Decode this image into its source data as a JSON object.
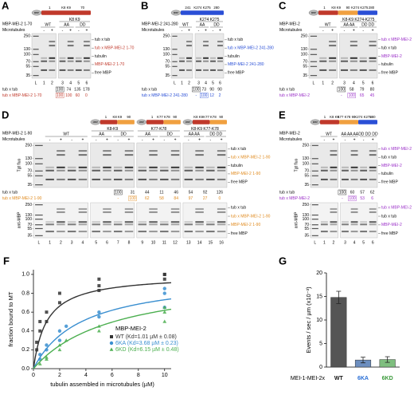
{
  "mbp_tag": "MBP",
  "panels": [
    {
      "letter": "A",
      "construct": "MBP-MEI-2 1-70",
      "microtubules_label": "Microtubules",
      "diagrams": [
        {
          "labels": [
            "1",
            "K8 K9",
            "70"
          ],
          "segments": [
            "#c0392b"
          ]
        }
      ],
      "gels": [
        {
          "groups": [
            "WT"
          ],
          "lanes": [
            "L",
            "1",
            "2"
          ],
          "signs": [
            "-",
            "+"
          ]
        },
        {
          "header": "K8 K9",
          "groups": [
            "AA",
            "DD"
          ],
          "lanes": [
            "3",
            "4",
            "5",
            "6"
          ],
          "signs": [
            "-",
            "+",
            "-",
            "+"
          ]
        }
      ],
      "mw_top": [
        250,
        130,
        100,
        70,
        55,
        35
      ],
      "right_top": [
        {
          "text": "tub x tub",
          "color": "#111"
        },
        {
          "text": "tub x MBP-MEI-2 1-70",
          "color": "#c0392b"
        },
        {
          "text": "tubulin",
          "color": "#111"
        },
        {
          "text": "MBP-MEI-2 1-70",
          "color": "#c0392b"
        },
        {
          "text": "free MBP",
          "color": "#111"
        }
      ],
      "quant": [
        {
          "label": "tub x tub",
          "color": "#111",
          "values": [
            100,
            74,
            135,
            178
          ],
          "boxed": 0
        },
        {
          "label": "tub x MBP-MEI-2 1-70",
          "color": "#c0392b",
          "values": [
            100,
            100,
            60,
            0
          ],
          "boxed": 0
        }
      ]
    },
    {
      "letter": "B",
      "construct": "MBP-MEI-2 241-280",
      "microtubules_label": "Microtubules",
      "diagrams": [
        {
          "labels": [
            "241",
            "K274 K275",
            "280"
          ],
          "segments": [
            "#2a4fd6"
          ]
        }
      ],
      "gels": [
        {
          "groups": [
            "WT"
          ],
          "lanes": [
            "L",
            "1",
            "2"
          ],
          "signs": [
            "-",
            "+"
          ]
        },
        {
          "header": "K274 K275",
          "groups": [
            "AA",
            "DD"
          ],
          "lanes": [
            "3",
            "4",
            "5",
            "6"
          ],
          "signs": [
            "-",
            "+",
            "-",
            "+"
          ]
        }
      ],
      "mw_top": [
        250,
        130,
        100,
        70,
        55,
        35
      ],
      "right_top": [
        {
          "text": "tub x tub",
          "color": "#111"
        },
        {
          "text": "tub x MBP-MEI-2 241-280",
          "color": "#2a4fd6"
        },
        {
          "text": "tubulin",
          "color": "#111"
        },
        {
          "text": "MBP-MEI-2 241-280",
          "color": "#2a4fd6"
        },
        {
          "text": "free MBP",
          "color": "#111"
        }
      ],
      "quant": [
        {
          "label": "tub x tub",
          "color": "#111",
          "values": [
            100,
            73,
            90,
            90
          ],
          "boxed": 0
        },
        {
          "label": "tub x MBP-MEI-2 241-280",
          "color": "#2a4fd6",
          "values": [
            "-",
            100,
            12,
            2
          ],
          "boxed": 1
        }
      ]
    },
    {
      "letter": "C",
      "construct": "MBP-MEI-2",
      "microtubules_label": "Microtubules",
      "diagrams": [
        {
          "labels": [
            "1",
            "K8 K9",
            "90",
            "K274 K275",
            "280"
          ],
          "segments": [
            "#c0392b",
            "#f0a040",
            "#2a4fd6"
          ]
        }
      ],
      "gels": [
        {
          "groups": [
            "WT"
          ],
          "lanes": [
            "L",
            "1",
            "2"
          ],
          "signs": [
            "-",
            "+"
          ]
        },
        {
          "header": "K8-K9 K274-K275",
          "groups": [
            "AA AA",
            "DD DD"
          ],
          "lanes": [
            "3",
            "4",
            "5",
            "6"
          ],
          "signs": [
            "-",
            "+",
            "-",
            "+"
          ]
        }
      ],
      "mw_top": [
        250,
        130,
        100,
        70,
        55,
        35
      ],
      "right_top": [
        {
          "text": "tub x MBP-MEI-2",
          "color": "#9b30c8"
        },
        {
          "text": "tub x tub",
          "color": "#111"
        },
        {
          "text": "MBP-MEI-2",
          "color": "#9b30c8"
        },
        {
          "text": "tubulin",
          "color": "#111"
        },
        {
          "text": "free MBP",
          "color": "#111"
        }
      ],
      "quant": [
        {
          "label": "tub x tub",
          "color": "#111",
          "values": [
            100,
            58,
            79,
            80
          ],
          "boxed": 0
        },
        {
          "label": "tub x MBP-MEI-2",
          "color": "#9b30c8",
          "values": [
            "-",
            100,
            65,
            45
          ],
          "boxed": 1
        }
      ]
    },
    {
      "letter": "D",
      "construct": "MBP-MEI-2 1-90",
      "microtubules_label": "Microtubules",
      "blot_top": "Tgt fluo",
      "blot_bottom": "anti-MBP",
      "diagrams": [
        {
          "labels": [
            "1",
            "K8 K9",
            "90"
          ],
          "segments": [
            "#c0392b",
            "#f0a040"
          ]
        },
        {
          "labels": [
            "1",
            "K77 K78",
            "90"
          ],
          "segments": [
            "#c0392b",
            "#f0a040"
          ]
        },
        {
          "labels": [
            "K8 K9",
            "K77 K78",
            "90"
          ],
          "segments": [
            "#c0392b",
            "#f0a040"
          ]
        }
      ],
      "gels": [
        {
          "groups": [
            "WT"
          ],
          "lanes": [
            "L",
            "1",
            "2",
            "3",
            "4"
          ],
          "signs": [
            "-",
            "+",
            "-",
            "+"
          ]
        },
        {
          "header": "K8-K9",
          "groups": [
            "AA",
            "DD"
          ],
          "lanes": [
            "5",
            "6",
            "7",
            "8"
          ],
          "signs": [
            "-",
            "+",
            "-",
            "+"
          ]
        },
        {
          "header": "K77-K78",
          "groups": [
            "AA",
            "DD"
          ],
          "lanes": [
            "9",
            "10",
            "11",
            "12"
          ],
          "signs": [
            "-",
            "+",
            "-",
            "+"
          ]
        },
        {
          "header": "K8-K9 K77-K78",
          "groups": [
            "AA AA",
            "DD DD"
          ],
          "lanes": [
            "13",
            "14",
            "15",
            "16"
          ],
          "signs": [
            "-",
            "+",
            "-",
            "+"
          ]
        }
      ],
      "mw_top": [
        250,
        130,
        100,
        70,
        55,
        35
      ],
      "right_top": [
        {
          "text": "tub x tub",
          "color": "#111"
        },
        {
          "text": "tub x MBP-MEI-2 1-90",
          "color": "#e08a1e"
        },
        {
          "text": "tubulin",
          "color": "#111"
        },
        {
          "text": "MBP-MEI-2 1-90",
          "color": "#e08a1e"
        },
        {
          "text": "free MBP",
          "color": "#111"
        }
      ],
      "mw_bottom": [
        250,
        130,
        100,
        70,
        55,
        35
      ],
      "right_bottom": [
        {
          "text": "tub x tub",
          "color": "#111"
        },
        {
          "text": "tub x MBP-MEI-2 1-90",
          "color": "#e08a1e"
        },
        {
          "text": "MBP-MEI-2 1-90",
          "color": "#e08a1e"
        },
        {
          "text": "free MBP",
          "color": "#111"
        }
      ],
      "quant": [
        {
          "label": "tub x tub",
          "color": "#111",
          "values": [
            100,
            31,
            44,
            11,
            46,
            54,
            92,
            126
          ],
          "boxed": 0
        },
        {
          "label": "tub x MBP-MEI-2 1-90",
          "color": "#e08a1e",
          "values": [
            "-",
            100,
            62,
            58,
            84,
            97,
            27,
            0
          ],
          "boxed": 1
        }
      ]
    },
    {
      "letter": "E",
      "construct": "MBP-MEI-2",
      "microtubules_label": "Microtubules",
      "blot_top": "Tgt fluo",
      "blot_bottom": "anti-MBP",
      "diagrams": [
        {
          "labels": [
            "1",
            "K8 K9",
            "K77 K78",
            "90",
            "K274 K275",
            "280"
          ],
          "segments": [
            "#c0392b",
            "#f0a040",
            "#2a4fd6"
          ]
        }
      ],
      "gels": [
        {
          "groups": [
            "WT"
          ],
          "lanes": [
            "L",
            "1",
            "2"
          ],
          "signs": [
            "-",
            "+"
          ]
        },
        {
          "groups": [
            "AA AA AA",
            "DD DD DD"
          ],
          "lanes": [
            "3",
            "4",
            "5",
            "6"
          ],
          "signs": [
            "-",
            "+",
            "-",
            "+"
          ]
        }
      ],
      "mw_top": [
        250,
        130,
        100,
        70,
        55,
        35
      ],
      "right_top": [
        {
          "text": "tub x MBP-MEI-2",
          "color": "#9b30c8"
        },
        {
          "text": "tub x tub",
          "color": "#111"
        },
        {
          "text": "MBP-MEI-2",
          "color": "#9b30c8"
        },
        {
          "text": "tubulin",
          "color": "#111"
        },
        {
          "text": "free MBP",
          "color": "#111"
        }
      ],
      "mw_bottom": [
        250,
        130,
        100,
        70,
        55,
        35
      ],
      "right_bottom": [
        {
          "text": "tub x MBP-MEI-2",
          "color": "#9b30c8"
        },
        {
          "text": "tub x tub",
          "color": "#111"
        },
        {
          "text": "MBP-MEI-2",
          "color": "#9b30c8"
        },
        {
          "text": "free MBP",
          "color": "#111"
        }
      ],
      "quant": [
        {
          "label": "tub x tub",
          "color": "#111",
          "values": [
            100,
            60,
            57,
            62
          ],
          "boxed": 0
        },
        {
          "label": "tub x MBP-MEI-2",
          "color": "#9b30c8",
          "values": [
            "-",
            100,
            53,
            6
          ],
          "boxed": 1
        }
      ]
    }
  ],
  "chart_data": [
    {
      "type": "scatter",
      "letter": "F",
      "xlabel": "tubulin assembled in microtubules (µM)",
      "ylabel": "fraction bound to MT",
      "xlim": [
        0,
        10.5
      ],
      "ylim": [
        0,
        1.05
      ],
      "xticks": [
        0,
        2,
        4,
        6,
        8,
        10
      ],
      "yticks": [
        {
          "value": 0,
          "label": "0.0"
        },
        0.2,
        0.4,
        0.6,
        0.8,
        {
          "value": 1,
          "label": "1.0"
        }
      ],
      "legend_title": "MBP-MEI-2",
      "legend": "lower right",
      "series": [
        {
          "name": "WT (Kd=1.01 µM ± 0.08)",
          "kd": 1.01,
          "color": "#333333",
          "marker": "square",
          "x": [
            0.25,
            0.25,
            0.5,
            0.5,
            1,
            1,
            2,
            2,
            5,
            5,
            5,
            10,
            10,
            10
          ],
          "values": [
            0.2,
            0.28,
            0.4,
            0.5,
            0.5,
            0.6,
            0.7,
            0.8,
            0.83,
            0.88,
            0.95,
            0.95,
            1.0,
            1.0
          ]
        },
        {
          "name": "6KA (Kd=3.68 µM ± 0.23)",
          "kd": 3.68,
          "color": "#3a8fd0",
          "marker": "circle",
          "x": [
            0.5,
            0.5,
            1,
            1,
            2,
            2,
            2.5,
            5,
            5,
            10,
            10,
            10
          ],
          "values": [
            0.1,
            0.15,
            0.2,
            0.25,
            0.3,
            0.4,
            0.45,
            0.55,
            0.6,
            0.65,
            0.8,
            0.85
          ]
        },
        {
          "name": "6KD (Kd=6.15 µM ± 0.48)",
          "kd": 6.15,
          "color": "#4caf50",
          "marker": "triangle",
          "x": [
            0.5,
            1,
            1,
            2,
            2,
            2.5,
            5,
            5,
            10,
            10,
            10
          ],
          "values": [
            0.05,
            0.1,
            0.12,
            0.2,
            0.25,
            0.3,
            0.4,
            0.45,
            0.5,
            0.6,
            0.65
          ]
        }
      ]
    },
    {
      "type": "bar",
      "letter": "G",
      "ylabel": "Events / sec / µm (x10⁻³)",
      "xlabel": "MEI-1-MEI-2x",
      "categories": [
        "WT",
        "6KA",
        "6KD"
      ],
      "values": [
        14.8,
        1.5,
        1.6
      ],
      "errors": [
        1.3,
        0.6,
        0.6
      ],
      "colors": [
        "#555555",
        "#6c8ebf",
        "#7fbf7f"
      ],
      "label_colors": [
        "#111111",
        "#2a6fd6",
        "#3a9a3a"
      ],
      "ylim": [
        0,
        20
      ],
      "yticks": [
        0,
        5,
        10,
        15,
        20
      ]
    }
  ]
}
